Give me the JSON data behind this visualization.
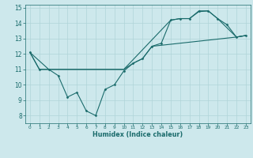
{
  "xlabel": "Humidex (Indice chaleur)",
  "ylabel": "",
  "xlim": [
    -0.5,
    23.5
  ],
  "ylim": [
    7.5,
    15.2
  ],
  "yticks": [
    8,
    9,
    10,
    11,
    12,
    13,
    14,
    15
  ],
  "xticks": [
    0,
    1,
    2,
    3,
    4,
    5,
    6,
    7,
    8,
    9,
    10,
    11,
    12,
    13,
    14,
    15,
    16,
    17,
    18,
    19,
    20,
    21,
    22,
    23
  ],
  "bg_color": "#cde8ec",
  "grid_color": "#b0d4d8",
  "line_color": "#1a6b6b",
  "line1_x": [
    0,
    1,
    2,
    3,
    4,
    5,
    6,
    7,
    8,
    9,
    10,
    11,
    12,
    13,
    14,
    15,
    16,
    17,
    18,
    19,
    20,
    21,
    22,
    23
  ],
  "line1_y": [
    12.1,
    11.0,
    11.0,
    10.6,
    9.2,
    9.5,
    8.3,
    8.0,
    9.7,
    10.0,
    10.9,
    11.4,
    11.7,
    12.5,
    12.7,
    14.2,
    14.3,
    14.3,
    14.8,
    14.8,
    14.3,
    13.9,
    13.1,
    13.2
  ],
  "line2_x": [
    0,
    2,
    3,
    10,
    15,
    16,
    17,
    18,
    19,
    20,
    22,
    23
  ],
  "line2_y": [
    12.1,
    11.0,
    11.0,
    11.0,
    14.2,
    14.3,
    14.3,
    14.75,
    14.8,
    14.3,
    13.1,
    13.2
  ],
  "line3_x": [
    0,
    1,
    2,
    3,
    10,
    11,
    12,
    13,
    22,
    23
  ],
  "line3_y": [
    12.1,
    11.0,
    11.0,
    11.0,
    11.0,
    11.4,
    11.7,
    12.5,
    13.1,
    13.2
  ]
}
